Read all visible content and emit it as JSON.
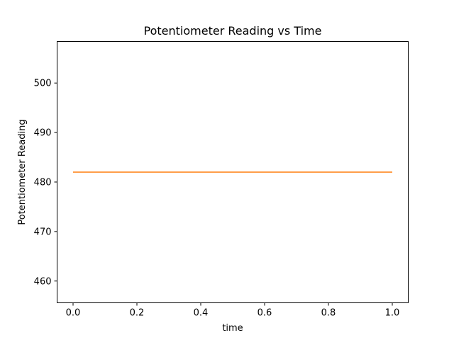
{
  "chart_data": {
    "type": "line",
    "title": "Potentiometer Reading vs Time",
    "xlabel": "time",
    "ylabel": "Potentiometer Reading",
    "xlim": [
      -0.05,
      1.05
    ],
    "ylim": [
      455.6,
      508.4
    ],
    "xticks": [
      0.0,
      0.2,
      0.4,
      0.6,
      0.8,
      1.0
    ],
    "xtick_labels": [
      "0.0",
      "0.2",
      "0.4",
      "0.6",
      "0.8",
      "1.0"
    ],
    "yticks": [
      460,
      470,
      480,
      490,
      500
    ],
    "ytick_labels": [
      "460",
      "470",
      "480",
      "490",
      "500"
    ],
    "grid": false,
    "legend": "none",
    "series": [
      {
        "color": "#ff7f0e",
        "x": [
          0.0,
          1.0
        ],
        "y": [
          482,
          482
        ]
      }
    ]
  }
}
